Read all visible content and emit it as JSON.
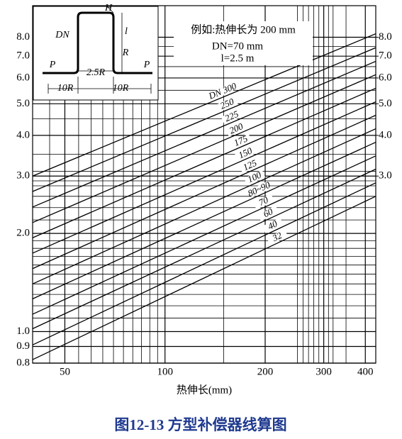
{
  "chart_data": {
    "type": "line",
    "title": "图12-13  方型补偿器线算图",
    "x_label": "热伸长(mm)",
    "x_log": true,
    "y_log": true,
    "grid": true,
    "x": [
      40,
      430
    ],
    "xlim": [
      40,
      430
    ],
    "ylim": [
      0.8,
      10
    ],
    "y2lim": [
      0.8,
      10
    ],
    "xticks": [
      50,
      100,
      200,
      300,
      400
    ],
    "yticks": [
      {
        "value": 0.8,
        "label": "0.8"
      },
      {
        "value": 0.9,
        "label": "0.9"
      },
      {
        "value": 1,
        "label": "1.0"
      },
      {
        "value": 2,
        "label": "2.0"
      },
      {
        "value": 3,
        "label": "3.0"
      },
      {
        "value": 4,
        "label": "4.0"
      },
      {
        "value": 5,
        "label": "5.0"
      },
      {
        "value": 6,
        "label": "6.0"
      },
      {
        "value": 7,
        "label": "7.0"
      },
      {
        "value": 8,
        "label": "8.0"
      }
    ],
    "y2ticks": [
      {
        "value": 3,
        "label": "3.0"
      },
      {
        "value": 4,
        "label": "4.0"
      },
      {
        "value": 5,
        "label": "5.0"
      },
      {
        "value": 6,
        "label": "6.0"
      },
      {
        "value": 7,
        "label": "7.0"
      },
      {
        "value": 8,
        "label": "8.0"
      }
    ],
    "minor_xgrid": [
      45,
      55,
      60,
      65,
      70,
      75,
      80,
      85,
      90,
      95,
      150,
      250,
      260,
      270,
      280,
      290,
      310,
      320,
      350
    ],
    "minor_ygrid": [
      1.1,
      1.2,
      1.3,
      1.4,
      1.5,
      1.6,
      1.7,
      1.8,
      1.9,
      2.2,
      2.4,
      2.6,
      2.8,
      2.9,
      3.1,
      3.5,
      4.5,
      5.5,
      6.5,
      7.5
    ],
    "series": [
      {
        "name": "32",
        "color": "#000",
        "values": [
          0.82,
          2.6
        ]
      },
      {
        "name": "40",
        "color": "#000",
        "values": [
          0.91,
          2.86
        ]
      },
      {
        "name": "60",
        "color": "#000",
        "values": [
          1.02,
          3.15
        ]
      },
      {
        "name": "70",
        "color": "#000",
        "values": [
          1.13,
          3.46
        ]
      },
      {
        "name": "80~90",
        "color": "#000",
        "values": [
          1.26,
          3.81
        ]
      },
      {
        "name": "100",
        "color": "#000",
        "values": [
          1.4,
          4.19
        ]
      },
      {
        "name": "125",
        "color": "#000",
        "values": [
          1.56,
          4.61
        ]
      },
      {
        "name": "150",
        "color": "#000",
        "values": [
          1.74,
          5.07
        ]
      },
      {
        "name": "175",
        "color": "#000",
        "values": [
          1.94,
          5.58
        ]
      },
      {
        "name": "200",
        "color": "#000",
        "values": [
          2.16,
          6.14
        ]
      },
      {
        "name": "225",
        "color": "#000",
        "values": [
          2.41,
          6.75
        ]
      },
      {
        "name": "250",
        "color": "#000",
        "values": [
          2.69,
          7.43
        ]
      },
      {
        "name": "DN 300",
        "color": "#000",
        "values": [
          3.0,
          8.2
        ]
      }
    ],
    "annotations": [
      "例如:热伸长为 200 mm",
      "DN=70 mm",
      "l=2.5 m"
    ],
    "inset_labels": [
      "H",
      "DN",
      "l",
      "R",
      "P",
      "P",
      "2.5R",
      "10R",
      "10R"
    ]
  }
}
